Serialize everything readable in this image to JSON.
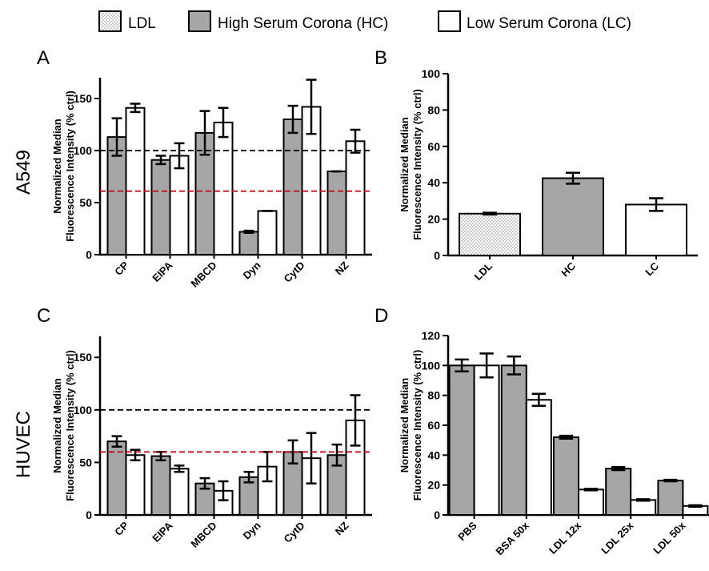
{
  "legend": {
    "items": [
      {
        "label": "LDL",
        "fill": "dots"
      },
      {
        "label": "High Serum Corona (HC)",
        "fill": "#a6a6a6"
      },
      {
        "label": "Low Serum Corona (LC)",
        "fill": "#ffffff"
      }
    ]
  },
  "row_labels": {
    "top": "A549",
    "bottom": "HUVEC"
  },
  "colors": {
    "hc": "#a6a6a6",
    "lc": "#ffffff",
    "axis": "#000000",
    "ref_black": "#000000",
    "ref_red": "#c0141c"
  },
  "chart_data": [
    {
      "panel": "A",
      "type": "bar",
      "ylabel": [
        "Normalized Median",
        "Fluorescence Intensity (% ctrl)"
      ],
      "ylim": [
        0,
        170
      ],
      "yticks": [
        0,
        50,
        100,
        150
      ],
      "categories": [
        "CP",
        "EIPA",
        "MBCD",
        "Dyn",
        "CytD",
        "NZ"
      ],
      "series": [
        {
          "key": "hc",
          "values": [
            113,
            91,
            117,
            22,
            130,
            80
          ],
          "errors": [
            18,
            4,
            21,
            1,
            13,
            0
          ]
        },
        {
          "key": "lc",
          "values": [
            141,
            95,
            127,
            42,
            142,
            109
          ],
          "errors": [
            4,
            12,
            14,
            0,
            26,
            11
          ]
        }
      ],
      "ref_lines": [
        {
          "value": 100,
          "color": "ref_black"
        },
        {
          "value": 61,
          "color": "ref_red"
        }
      ]
    },
    {
      "panel": "B",
      "type": "bar",
      "ylabel": [
        "Normalized Median",
        "Fluorescence Intensity (% ctrl)"
      ],
      "ylim": [
        0,
        100
      ],
      "yticks": [
        0,
        20,
        40,
        60,
        80,
        100
      ],
      "categories": [
        "LDL",
        "HC",
        "LC"
      ],
      "bars": [
        {
          "value": 23,
          "error": 0.5,
          "fill": "dots"
        },
        {
          "value": 42.5,
          "error": 3,
          "fill": "hc"
        },
        {
          "value": 28,
          "error": 3.5,
          "fill": "lc"
        }
      ]
    },
    {
      "panel": "C",
      "type": "bar",
      "ylabel": [
        "Normalized Median",
        "Fluorescence Intensity (% ctrl)"
      ],
      "ylim": [
        0,
        170
      ],
      "yticks": [
        0,
        50,
        100,
        150
      ],
      "categories": [
        "CP",
        "EIPA",
        "MBCD",
        "Dyn",
        "CytD",
        "NZ"
      ],
      "series": [
        {
          "key": "hc",
          "values": [
            70,
            56,
            30,
            36,
            60,
            57
          ],
          "errors": [
            5,
            4,
            5,
            5,
            11,
            10
          ]
        },
        {
          "key": "lc",
          "values": [
            57,
            44,
            23,
            46,
            54,
            90
          ],
          "errors": [
            5,
            3,
            9,
            14,
            24,
            24
          ]
        }
      ],
      "ref_lines": [
        {
          "value": 100,
          "color": "ref_black"
        },
        {
          "value": 60,
          "color": "ref_red"
        }
      ]
    },
    {
      "panel": "D",
      "type": "bar",
      "ylabel": [
        "Normalized Median",
        "Fluorescence Intensity (% ctrl)"
      ],
      "ylim": [
        0,
        120
      ],
      "yticks": [
        0,
        20,
        40,
        60,
        80,
        100,
        120
      ],
      "categories": [
        "PBS",
        "BSA 50x",
        "LDL 12x",
        "LDL 25x",
        "LDL 50x"
      ],
      "series": [
        {
          "key": "hc",
          "values": [
            100,
            100,
            52,
            31,
            23
          ],
          "errors": [
            4,
            6,
            1,
            1,
            0.5
          ]
        },
        {
          "key": "lc",
          "values": [
            100,
            77,
            17,
            10,
            6
          ],
          "errors": [
            8,
            4,
            0.5,
            0.5,
            0.5
          ]
        }
      ]
    }
  ]
}
